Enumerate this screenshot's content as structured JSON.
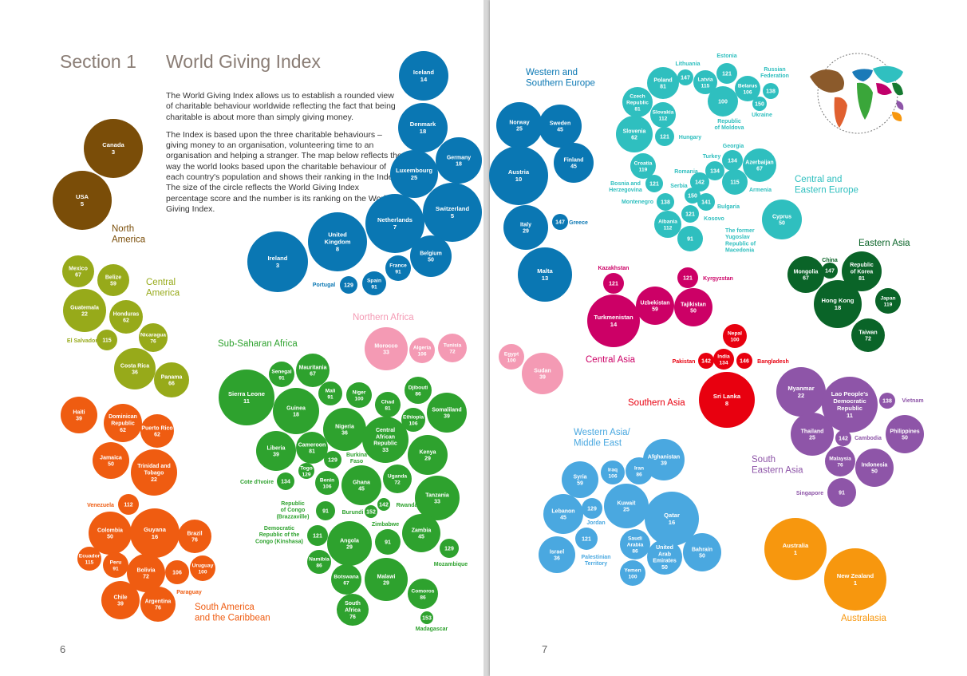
{
  "left_page": {
    "section_label": "Section 1",
    "title": "World Giving Index",
    "intro_p1": "The World Giving Index allows us to establish a rounded view of charitable behaviour worldwide reflecting the fact that being charitable is about more than simply giving money.",
    "intro_p2": "The Index is based upon the three charitable behaviours – giving money to an organisation, volunteering time to an organisation and helping a stranger. The map below reflects the way the world looks based upon the charitable behaviour of each country's population and shows their ranking in the Index. The size of the circle reflects the World Giving Index percentage score and the number is its ranking on the World Giving Index.",
    "page_number": "6"
  },
  "right_page": {
    "page_number": "7"
  },
  "colors": {
    "north_america": "#7a4d08",
    "central_america": "#97aa1a",
    "south_america": "#ef5c11",
    "western_europe": "#0a77b3",
    "central_eastern_europe": "#2fbfbf",
    "sub_saharan_africa": "#2ea22e",
    "northern_africa": "#f49ab4",
    "central_asia": "#cc0066",
    "southern_asia": "#e8000f",
    "eastern_asia": "#0a6428",
    "south_eastern_asia": "#8e55a8",
    "western_asia": "#4aa8e0",
    "australasia": "#f7970e"
  },
  "regions": [
    {
      "key": "north_america",
      "lines": [
        "North",
        "America"
      ]
    },
    {
      "key": "central_america",
      "lines": [
        "Central",
        "America"
      ]
    },
    {
      "key": "south_america",
      "lines": [
        "South America",
        "and the Caribbean"
      ]
    },
    {
      "key": "western_europe",
      "lines": [
        "Western and",
        "Southern Europe"
      ]
    },
    {
      "key": "central_eastern_europe",
      "lines": [
        "Central and",
        "Eastern Europe"
      ]
    },
    {
      "key": "sub_saharan_africa",
      "lines": [
        "Sub-Saharan Africa"
      ]
    },
    {
      "key": "northern_africa",
      "lines": [
        "Northern Africa"
      ]
    },
    {
      "key": "central_asia",
      "lines": [
        "Central Asia"
      ]
    },
    {
      "key": "southern_asia",
      "lines": [
        "Southern Asia"
      ]
    },
    {
      "key": "eastern_asia",
      "lines": [
        "Eastern Asia"
      ]
    },
    {
      "key": "south_eastern_asia",
      "lines": [
        "South",
        "Eastern Asia"
      ]
    },
    {
      "key": "western_asia",
      "lines": [
        "Western Asia/",
        "Middle East"
      ]
    },
    {
      "key": "australasia",
      "lines": [
        "Australasia"
      ]
    }
  ],
  "countries": [
    {
      "name": "Canada",
      "rank": "3",
      "region": "north_america"
    },
    {
      "name": "USA",
      "rank": "5",
      "region": "north_america"
    },
    {
      "name": "Mexico",
      "rank": "67",
      "region": "central_america"
    },
    {
      "name": "Belize",
      "rank": "59",
      "region": "central_america"
    },
    {
      "name": "Guatemala",
      "rank": "22",
      "region": "central_america"
    },
    {
      "name": "Honduras",
      "rank": "62",
      "region": "central_america"
    },
    {
      "name": "Nicaragua",
      "rank": "76",
      "region": "central_america"
    },
    {
      "name": "El Salvador",
      "rank": "115",
      "region": "central_america"
    },
    {
      "name": "Costa Rica",
      "rank": "36",
      "region": "central_america"
    },
    {
      "name": "Panama",
      "rank": "66",
      "region": "central_america"
    },
    {
      "name": "Haiti",
      "rank": "39",
      "region": "south_america"
    },
    {
      "name": "Dominican Republic",
      "rank": "62",
      "region": "south_america"
    },
    {
      "name": "Puerto Rico",
      "rank": "62",
      "region": "south_america"
    },
    {
      "name": "Jamaica",
      "rank": "50",
      "region": "south_america"
    },
    {
      "name": "Trinidad and Tobago",
      "rank": "22",
      "region": "south_america"
    },
    {
      "name": "Venezuela",
      "rank": "112",
      "region": "south_america"
    },
    {
      "name": "Colombia",
      "rank": "50",
      "region": "south_america"
    },
    {
      "name": "Guyana",
      "rank": "16",
      "region": "south_america"
    },
    {
      "name": "Brazil",
      "rank": "76",
      "region": "south_america"
    },
    {
      "name": "Ecuador",
      "rank": "115",
      "region": "south_america"
    },
    {
      "name": "Peru",
      "rank": "91",
      "region": "south_america"
    },
    {
      "name": "Bolivia",
      "rank": "72",
      "region": "south_america"
    },
    {
      "name": "Paraguay",
      "rank": "106",
      "region": "south_america"
    },
    {
      "name": "Uruguay",
      "rank": "100",
      "region": "south_america"
    },
    {
      "name": "Chile",
      "rank": "39",
      "region": "south_america"
    },
    {
      "name": "Argentina",
      "rank": "76",
      "region": "south_america"
    },
    {
      "name": "Iceland",
      "rank": "14",
      "region": "western_europe"
    },
    {
      "name": "Denmark",
      "rank": "18",
      "region": "western_europe"
    },
    {
      "name": "Germany",
      "rank": "18",
      "region": "western_europe"
    },
    {
      "name": "Luxembourg",
      "rank": "25",
      "region": "western_europe"
    },
    {
      "name": "Netherlands",
      "rank": "7",
      "region": "western_europe"
    },
    {
      "name": "Switzerland",
      "rank": "5",
      "region": "western_europe"
    },
    {
      "name": "United Kingdom",
      "rank": "8",
      "region": "western_europe"
    },
    {
      "name": "Ireland",
      "rank": "3",
      "region": "western_europe"
    },
    {
      "name": "Belgium",
      "rank": "50",
      "region": "western_europe"
    },
    {
      "name": "France",
      "rank": "91",
      "region": "western_europe"
    },
    {
      "name": "Portugal",
      "rank": "129",
      "region": "western_europe"
    },
    {
      "name": "Spain",
      "rank": "91",
      "region": "western_europe"
    },
    {
      "name": "Norway",
      "rank": "25",
      "region": "western_europe"
    },
    {
      "name": "Sweden",
      "rank": "45",
      "region": "western_europe"
    },
    {
      "name": "Finland",
      "rank": "45",
      "region": "western_europe"
    },
    {
      "name": "Austria",
      "rank": "10",
      "region": "western_europe"
    },
    {
      "name": "Italy",
      "rank": "29",
      "region": "western_europe"
    },
    {
      "name": "Greece",
      "rank": "147",
      "region": "western_europe"
    },
    {
      "name": "Malta",
      "rank": "13",
      "region": "western_europe"
    },
    {
      "name": "Senegal",
      "rank": "91",
      "region": "sub_saharan_africa"
    },
    {
      "name": "Mauritania",
      "rank": "67",
      "region": "sub_saharan_africa"
    },
    {
      "name": "Sierra Leone",
      "rank": "11",
      "region": "sub_saharan_africa"
    },
    {
      "name": "Guinea",
      "rank": "18",
      "region": "sub_saharan_africa"
    },
    {
      "name": "Mali",
      "rank": "91",
      "region": "sub_saharan_africa"
    },
    {
      "name": "Niger",
      "rank": "100",
      "region": "sub_saharan_africa"
    },
    {
      "name": "Djibouti",
      "rank": "86",
      "region": "sub_saharan_africa"
    },
    {
      "name": "Chad",
      "rank": "81",
      "region": "sub_saharan_africa"
    },
    {
      "name": "Nigeria",
      "rank": "36",
      "region": "sub_saharan_africa"
    },
    {
      "name": "Ethiopia",
      "rank": "106",
      "region": "sub_saharan_africa"
    },
    {
      "name": "Somaliland",
      "rank": "39",
      "region": "sub_saharan_africa"
    },
    {
      "name": "Central African Republic",
      "rank": "33",
      "region": "sub_saharan_africa"
    },
    {
      "name": "Liberia",
      "rank": "39",
      "region": "sub_saharan_africa"
    },
    {
      "name": "Cameroon",
      "rank": "81",
      "region": "sub_saharan_africa"
    },
    {
      "name": "Kenya",
      "rank": "29",
      "region": "sub_saharan_africa"
    },
    {
      "name": "Burkina Faso",
      "rank": "129",
      "region": "sub_saharan_africa"
    },
    {
      "name": "Togo",
      "rank": "129",
      "region": "sub_saharan_africa"
    },
    {
      "name": "Cote d'Ivoire",
      "rank": "134",
      "region": "sub_saharan_africa"
    },
    {
      "name": "Benin",
      "rank": "106",
      "region": "sub_saharan_africa"
    },
    {
      "name": "Ghana",
      "rank": "45",
      "region": "sub_saharan_africa"
    },
    {
      "name": "Uganda",
      "rank": "72",
      "region": "sub_saharan_africa"
    },
    {
      "name": "Tanzania",
      "rank": "33",
      "region": "sub_saharan_africa"
    },
    {
      "name": "Republic of Congo (Brazzaville)",
      "rank": "91",
      "region": "sub_saharan_africa"
    },
    {
      "name": "Burundi",
      "rank": "152",
      "region": "sub_saharan_africa"
    },
    {
      "name": "Rwanda",
      "rank": "142",
      "region": "sub_saharan_africa"
    },
    {
      "name": "Zimbabwe",
      "rank": "91",
      "region": "sub_saharan_africa"
    },
    {
      "name": "Democratic Republic of the Congo (Kinshasa)",
      "rank": "121",
      "region": "sub_saharan_africa"
    },
    {
      "name": "Angola",
      "rank": "29",
      "region": "sub_saharan_africa"
    },
    {
      "name": "Zambia",
      "rank": "45",
      "region": "sub_saharan_africa"
    },
    {
      "name": "Namibia",
      "rank": "86",
      "region": "sub_saharan_africa"
    },
    {
      "name": "Mozambique",
      "rank": "129",
      "region": "sub_saharan_africa"
    },
    {
      "name": "Botswana",
      "rank": "67",
      "region": "sub_saharan_africa"
    },
    {
      "name": "Malawi",
      "rank": "29",
      "region": "sub_saharan_africa"
    },
    {
      "name": "Comoros",
      "rank": "86",
      "region": "sub_saharan_africa"
    },
    {
      "name": "South Africa",
      "rank": "76",
      "region": "sub_saharan_africa"
    },
    {
      "name": "Madagascar",
      "rank": "153",
      "region": "sub_saharan_africa"
    },
    {
      "name": "Morocco",
      "rank": "33",
      "region": "northern_africa"
    },
    {
      "name": "Algeria",
      "rank": "106",
      "region": "northern_africa"
    },
    {
      "name": "Tunisia",
      "rank": "72",
      "region": "northern_africa"
    },
    {
      "name": "Egypt",
      "rank": "100",
      "region": "northern_africa"
    },
    {
      "name": "Sudan",
      "rank": "39",
      "region": "northern_africa"
    },
    {
      "name": "Lithuania",
      "rank": "147",
      "region": "central_eastern_europe"
    },
    {
      "name": "Estonia",
      "rank": "121",
      "region": "central_eastern_europe"
    },
    {
      "name": "Russian Federation",
      "rank": "138",
      "region": "central_eastern_europe"
    },
    {
      "name": "Poland",
      "rank": "81",
      "region": "central_eastern_europe"
    },
    {
      "name": "Latvia",
      "rank": "115",
      "region": "central_eastern_europe"
    },
    {
      "name": "Belarus",
      "rank": "106",
      "region": "central_eastern_europe"
    },
    {
      "name": "Czech Republic",
      "rank": "81",
      "region": "central_eastern_europe"
    },
    {
      "name": "Republic of Moldova",
      "rank": "100",
      "region": "central_eastern_europe"
    },
    {
      "name": "Ukraine",
      "rank": "150",
      "region": "central_eastern_europe"
    },
    {
      "name": "Slovakia",
      "rank": "112",
      "region": "central_eastern_europe"
    },
    {
      "name": "Slovenia",
      "rank": "62",
      "region": "central_eastern_europe"
    },
    {
      "name": "Hungary",
      "rank": "121",
      "region": "central_eastern_europe"
    },
    {
      "name": "Georgia",
      "rank": "134",
      "region": "central_eastern_europe"
    },
    {
      "name": "Turkey",
      "rank": "134",
      "region": "central_eastern_europe"
    },
    {
      "name": "Croatia",
      "rank": "119",
      "region": "central_eastern_europe"
    },
    {
      "name": "Azerbaijan",
      "rank": "67",
      "region": "central_eastern_europe"
    },
    {
      "name": "Romania",
      "rank": "142",
      "region": "central_eastern_europe"
    },
    {
      "name": "Bosnia and Herzegovina",
      "rank": "121",
      "region": "central_eastern_europe"
    },
    {
      "name": "Serbia",
      "rank": "150",
      "region": "central_eastern_europe"
    },
    {
      "name": "Armenia",
      "rank": "115",
      "region": "central_eastern_europe"
    },
    {
      "name": "Montenegro",
      "rank": "138",
      "region": "central_eastern_europe"
    },
    {
      "name": "Bulgaria",
      "rank": "141",
      "region": "central_eastern_europe"
    },
    {
      "name": "Kosovo",
      "rank": "121",
      "region": "central_eastern_europe"
    },
    {
      "name": "Albania",
      "rank": "112",
      "region": "central_eastern_europe"
    },
    {
      "name": "The former Yugoslav Republic of Macedonia",
      "rank": "91",
      "region": "central_eastern_europe"
    },
    {
      "name": "Cyprus",
      "rank": "50",
      "region": "central_eastern_europe"
    },
    {
      "name": "Kazakhstan",
      "rank": "121",
      "region": "central_asia"
    },
    {
      "name": "Uzbekistan",
      "rank": "59",
      "region": "central_asia"
    },
    {
      "name": "Kyrgyzstan",
      "rank": "121",
      "region": "central_asia"
    },
    {
      "name": "Tajikistan",
      "rank": "50",
      "region": "central_asia"
    },
    {
      "name": "Turkmenistan",
      "rank": "14",
      "region": "central_asia"
    },
    {
      "name": "Nepal",
      "rank": "100",
      "region": "southern_asia"
    },
    {
      "name": "Pakistan",
      "rank": "142",
      "region": "southern_asia"
    },
    {
      "name": "India",
      "rank": "134",
      "region": "southern_asia"
    },
    {
      "name": "Bangladesh",
      "rank": "146",
      "region": "southern_asia"
    },
    {
      "name": "Sri Lanka",
      "rank": "8",
      "region": "southern_asia"
    },
    {
      "name": "China",
      "rank": "147",
      "region": "eastern_asia"
    },
    {
      "name": "Mongolia",
      "rank": "67",
      "region": "eastern_asia"
    },
    {
      "name": "Republic of Korea",
      "rank": "81",
      "region": "eastern_asia"
    },
    {
      "name": "Hong Kong",
      "rank": "18",
      "region": "eastern_asia"
    },
    {
      "name": "Japan",
      "rank": "119",
      "region": "eastern_asia"
    },
    {
      "name": "Taiwan",
      "rank": "72",
      "region": "eastern_asia"
    },
    {
      "name": "Myanmar",
      "rank": "22",
      "region": "south_eastern_asia"
    },
    {
      "name": "Lao People's Democratic Republic",
      "rank": "11",
      "region": "south_eastern_asia"
    },
    {
      "name": "Vietnam",
      "rank": "138",
      "region": "south_eastern_asia"
    },
    {
      "name": "Thailand",
      "rank": "25",
      "region": "south_eastern_asia"
    },
    {
      "name": "Cambodia",
      "rank": "142",
      "region": "south_eastern_asia"
    },
    {
      "name": "Philippines",
      "rank": "50",
      "region": "south_eastern_asia"
    },
    {
      "name": "Malaysia",
      "rank": "76",
      "region": "south_eastern_asia"
    },
    {
      "name": "Indonesia",
      "rank": "50",
      "region": "south_eastern_asia"
    },
    {
      "name": "Singapore",
      "rank": "91",
      "region": "south_eastern_asia"
    },
    {
      "name": "Afghanistan",
      "rank": "39",
      "region": "western_asia"
    },
    {
      "name": "Syria",
      "rank": "59",
      "region": "western_asia"
    },
    {
      "name": "Iraq",
      "rank": "106",
      "region": "western_asia"
    },
    {
      "name": "Iran",
      "rank": "86",
      "region": "western_asia"
    },
    {
      "name": "Lebanon",
      "rank": "45",
      "region": "western_asia"
    },
    {
      "name": "Jordan",
      "rank": "129",
      "region": "western_asia"
    },
    {
      "name": "Kuwait",
      "rank": "25",
      "region": "western_asia"
    },
    {
      "name": "Qatar",
      "rank": "16",
      "region": "western_asia"
    },
    {
      "name": "Palestinian Territory",
      "rank": "121",
      "region": "western_asia"
    },
    {
      "name": "Israel",
      "rank": "36",
      "region": "western_asia"
    },
    {
      "name": "Saudi Arabia",
      "rank": "86",
      "region": "western_asia"
    },
    {
      "name": "United Arab Emirates",
      "rank": "50",
      "region": "western_asia"
    },
    {
      "name": "Bahrain",
      "rank": "50",
      "region": "western_asia"
    },
    {
      "name": "Yemen",
      "rank": "100",
      "region": "western_asia"
    },
    {
      "name": "Australia",
      "rank": "1",
      "region": "australasia"
    },
    {
      "name": "New Zealand",
      "rank": "1",
      "region": "australasia"
    }
  ]
}
